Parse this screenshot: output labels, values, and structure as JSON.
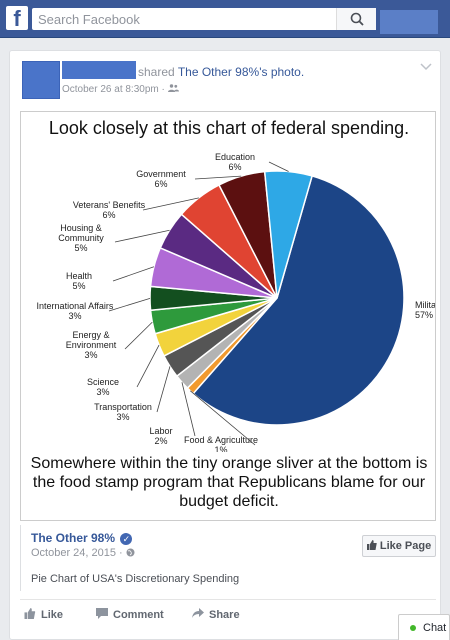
{
  "search": {
    "placeholder": "Search Facebook"
  },
  "post": {
    "shared_prefix": "shared",
    "shared_link": "The Other 98%'s photo.",
    "date": "October 26 at 8:30pm · "
  },
  "image": {
    "title": "Look closely at this chart of federal spending.",
    "caption": "Somewhere within the tiny orange sliver at the bottom is the food stamp program that Republicans blame for our budget deficit."
  },
  "chart_data": {
    "type": "pie",
    "title": "Look closely at this chart of federal spending.",
    "slices": [
      {
        "label": "Military",
        "value": 57,
        "display": "57%",
        "color": "#1c4587"
      },
      {
        "label": "Food & Agriculture",
        "value": 1,
        "display": "1%",
        "color": "#f29a2e"
      },
      {
        "label": "Labor",
        "value": 2,
        "display": "2%",
        "color": "#b3b3b3"
      },
      {
        "label": "Transportation",
        "value": 3,
        "display": "3%",
        "color": "#555555"
      },
      {
        "label": "Science",
        "value": 3,
        "display": "3%",
        "color": "#f2d33c"
      },
      {
        "label": "Energy & Environment",
        "value": 3,
        "display": "3%",
        "color": "#2e9a3c"
      },
      {
        "label": "International Affairs",
        "value": 3,
        "display": "3%",
        "color": "#134f1f"
      },
      {
        "label": "Health",
        "value": 5,
        "display": "5%",
        "color": "#b06ad6"
      },
      {
        "label": "Housing & Community",
        "value": 5,
        "display": "5%",
        "color": "#5a2a82"
      },
      {
        "label": "Veterans' Benefits",
        "value": 6,
        "display": "6%",
        "color": "#e04432"
      },
      {
        "label": "Government",
        "value": 6,
        "display": "6%",
        "color": "#5c1010"
      },
      {
        "label": "Education",
        "value": 6,
        "display": "6%",
        "color": "#2ea8e6"
      }
    ]
  },
  "shared_box": {
    "name": "The Other 98%",
    "date": "October 24, 2015 · ",
    "description": "Pie Chart of USA's Discretionary Spending",
    "like_page_label": "Like Page"
  },
  "actions": {
    "like": "Like",
    "comment": "Comment",
    "share": "Share"
  },
  "chat": {
    "label": "Chat"
  },
  "icons": {
    "logo": "facebook-logo",
    "search": "search-icon",
    "audience": "friends-icon",
    "menu": "chevron-down-icon",
    "globe": "globe-icon",
    "like": "thumbs-up-icon",
    "comment": "comment-icon",
    "share": "share-icon",
    "online": "online-dot-icon"
  },
  "colors": {
    "brand": "#3b5998",
    "link": "#365899",
    "online": "#42b72a"
  }
}
